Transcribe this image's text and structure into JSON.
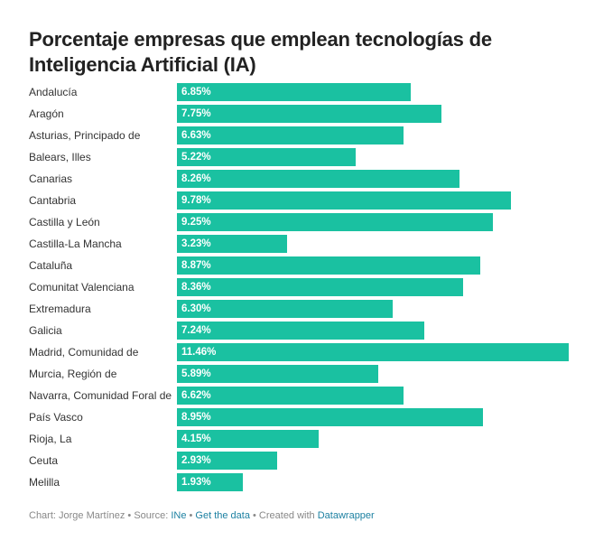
{
  "chart_data": {
    "type": "bar",
    "orientation": "horizontal",
    "title": "Porcentaje empresas que emplean tecnologías de Inteligencia Artificial (IA)",
    "bar_color": "#1ac1a1",
    "categories": [
      "Andalucía",
      "Aragón",
      "Asturias, Principado de",
      "Balears, Illes",
      "Canarias",
      "Cantabria",
      "Castilla y León",
      "Castilla-La Mancha",
      "Cataluña",
      "Comunitat Valenciana",
      "Extremadura",
      "Galicia",
      "Madrid, Comunidad de",
      "Murcia, Región de",
      "Navarra, Comunidad Foral de",
      "País Vasco",
      "Rioja, La",
      "Ceuta",
      "Melilla"
    ],
    "values": [
      6.85,
      7.75,
      6.63,
      5.22,
      8.26,
      9.78,
      9.25,
      3.23,
      8.87,
      8.36,
      6.3,
      7.24,
      11.46,
      5.89,
      6.62,
      8.95,
      4.15,
      2.93,
      1.93
    ],
    "value_labels": [
      "6.85%",
      "7.75%",
      "6.63%",
      "5.22%",
      "8.26%",
      "9.78%",
      "9.25%",
      "3.23%",
      "8.87%",
      "8.36%",
      "6.30%",
      "7.24%",
      "11.46%",
      "5.89%",
      "6.62%",
      "8.95%",
      "4.15%",
      "2.93%",
      "1.93%"
    ],
    "xlim": [
      0,
      11.46
    ]
  },
  "footer": {
    "prefix": "Chart: Jorge Martínez • Source: ",
    "source": "INe",
    "sep1": " • ",
    "get_data": "Get the data",
    "sep2": " • Created with ",
    "tool": "Datawrapper"
  }
}
